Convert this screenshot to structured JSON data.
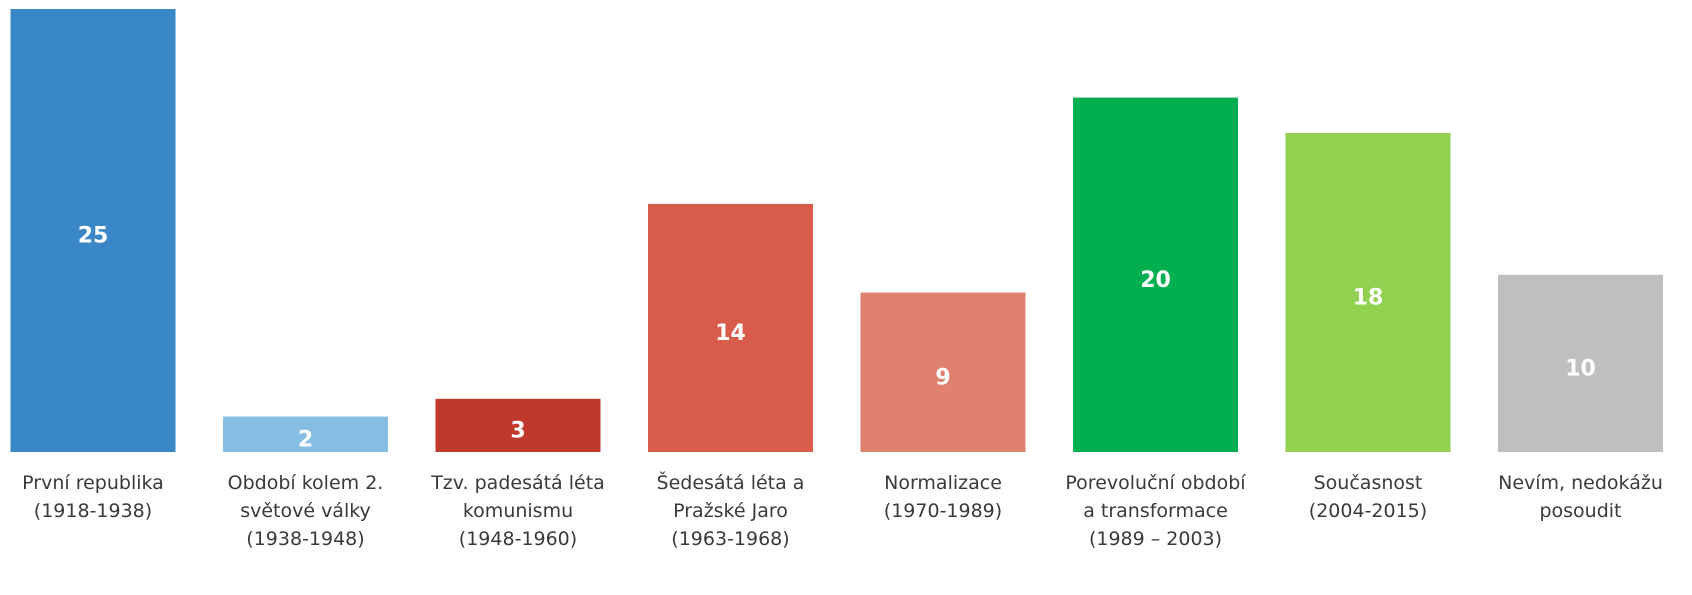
{
  "chart_data": {
    "type": "bar",
    "categories": [
      "První republika\n(1918-1938)",
      "Období kolem 2.\nsvětové války\n(1938-1948)",
      "Tzv. padesátá léta\nkomunismu\n(1948-1960)",
      "Šedesátá léta a\nPražské Jaro\n(1963-1968)",
      "Normalizace\n(1970-1989)",
      "Porevoluční období\na transformace\n(1989 – 2003)",
      "Současnost\n(2004-2015)",
      "Nevím, nedokážu\nposoudit"
    ],
    "values": [
      25,
      2,
      3,
      14,
      9,
      20,
      18,
      10
    ],
    "colors": [
      "#3a87c8",
      "#86bde3",
      "#c0392b",
      "#d95c4a",
      "#e08070",
      "#00b050",
      "#92d050",
      "#bfbfbd"
    ],
    "ylim": [
      0,
      25
    ]
  }
}
